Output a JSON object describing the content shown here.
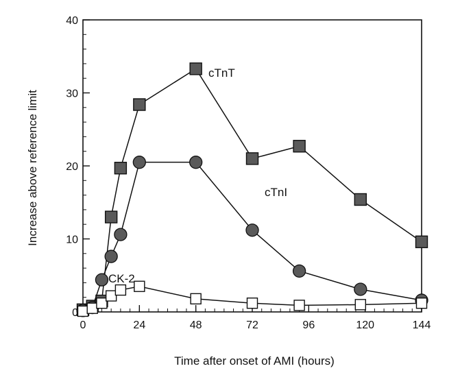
{
  "chart_data": {
    "type": "line",
    "xlabel": "Time after onset of AMI (hours)",
    "ylabel": "Increase above reference limit",
    "xlim": [
      0,
      144
    ],
    "ylim": [
      0,
      40
    ],
    "x_ticks": [
      0,
      24,
      48,
      72,
      96,
      120,
      144
    ],
    "y_ticks": [
      0,
      10,
      20,
      30,
      40
    ],
    "grid": false,
    "legend": "inline labels",
    "series": [
      {
        "name": "cTnT",
        "marker": "filled-square",
        "color": "#5a5a5a",
        "points": [
          [
            0,
            0.3
          ],
          [
            4,
            0.8
          ],
          [
            8,
            1.5
          ],
          [
            12,
            13
          ],
          [
            16,
            19.7
          ],
          [
            24,
            28.4
          ],
          [
            48,
            33.3
          ],
          [
            72,
            21
          ],
          [
            92,
            22.7
          ],
          [
            118,
            15.4
          ],
          [
            144,
            9.6
          ]
        ]
      },
      {
        "name": "cTnI",
        "marker": "filled-circle",
        "color": "#5a5a5a",
        "points": [
          [
            0,
            0.2
          ],
          [
            4,
            0.6
          ],
          [
            8,
            4.4
          ],
          [
            12,
            7.6
          ],
          [
            16,
            10.6
          ],
          [
            24,
            20.5
          ],
          [
            48,
            20.5
          ],
          [
            72,
            11.2
          ],
          [
            92,
            5.6
          ],
          [
            118,
            3.1
          ],
          [
            144,
            1.6
          ]
        ]
      },
      {
        "name": "CK-2",
        "marker": "open-square",
        "color": "#ffffff",
        "points": [
          [
            0,
            0.1
          ],
          [
            4,
            0.5
          ],
          [
            8,
            1.2
          ],
          [
            12,
            2.2
          ],
          [
            16,
            3.0
          ],
          [
            24,
            3.5
          ],
          [
            48,
            1.8
          ],
          [
            72,
            1.2
          ],
          [
            92,
            0.9
          ],
          [
            118,
            1.0
          ],
          [
            144,
            1.2
          ]
        ]
      }
    ]
  }
}
